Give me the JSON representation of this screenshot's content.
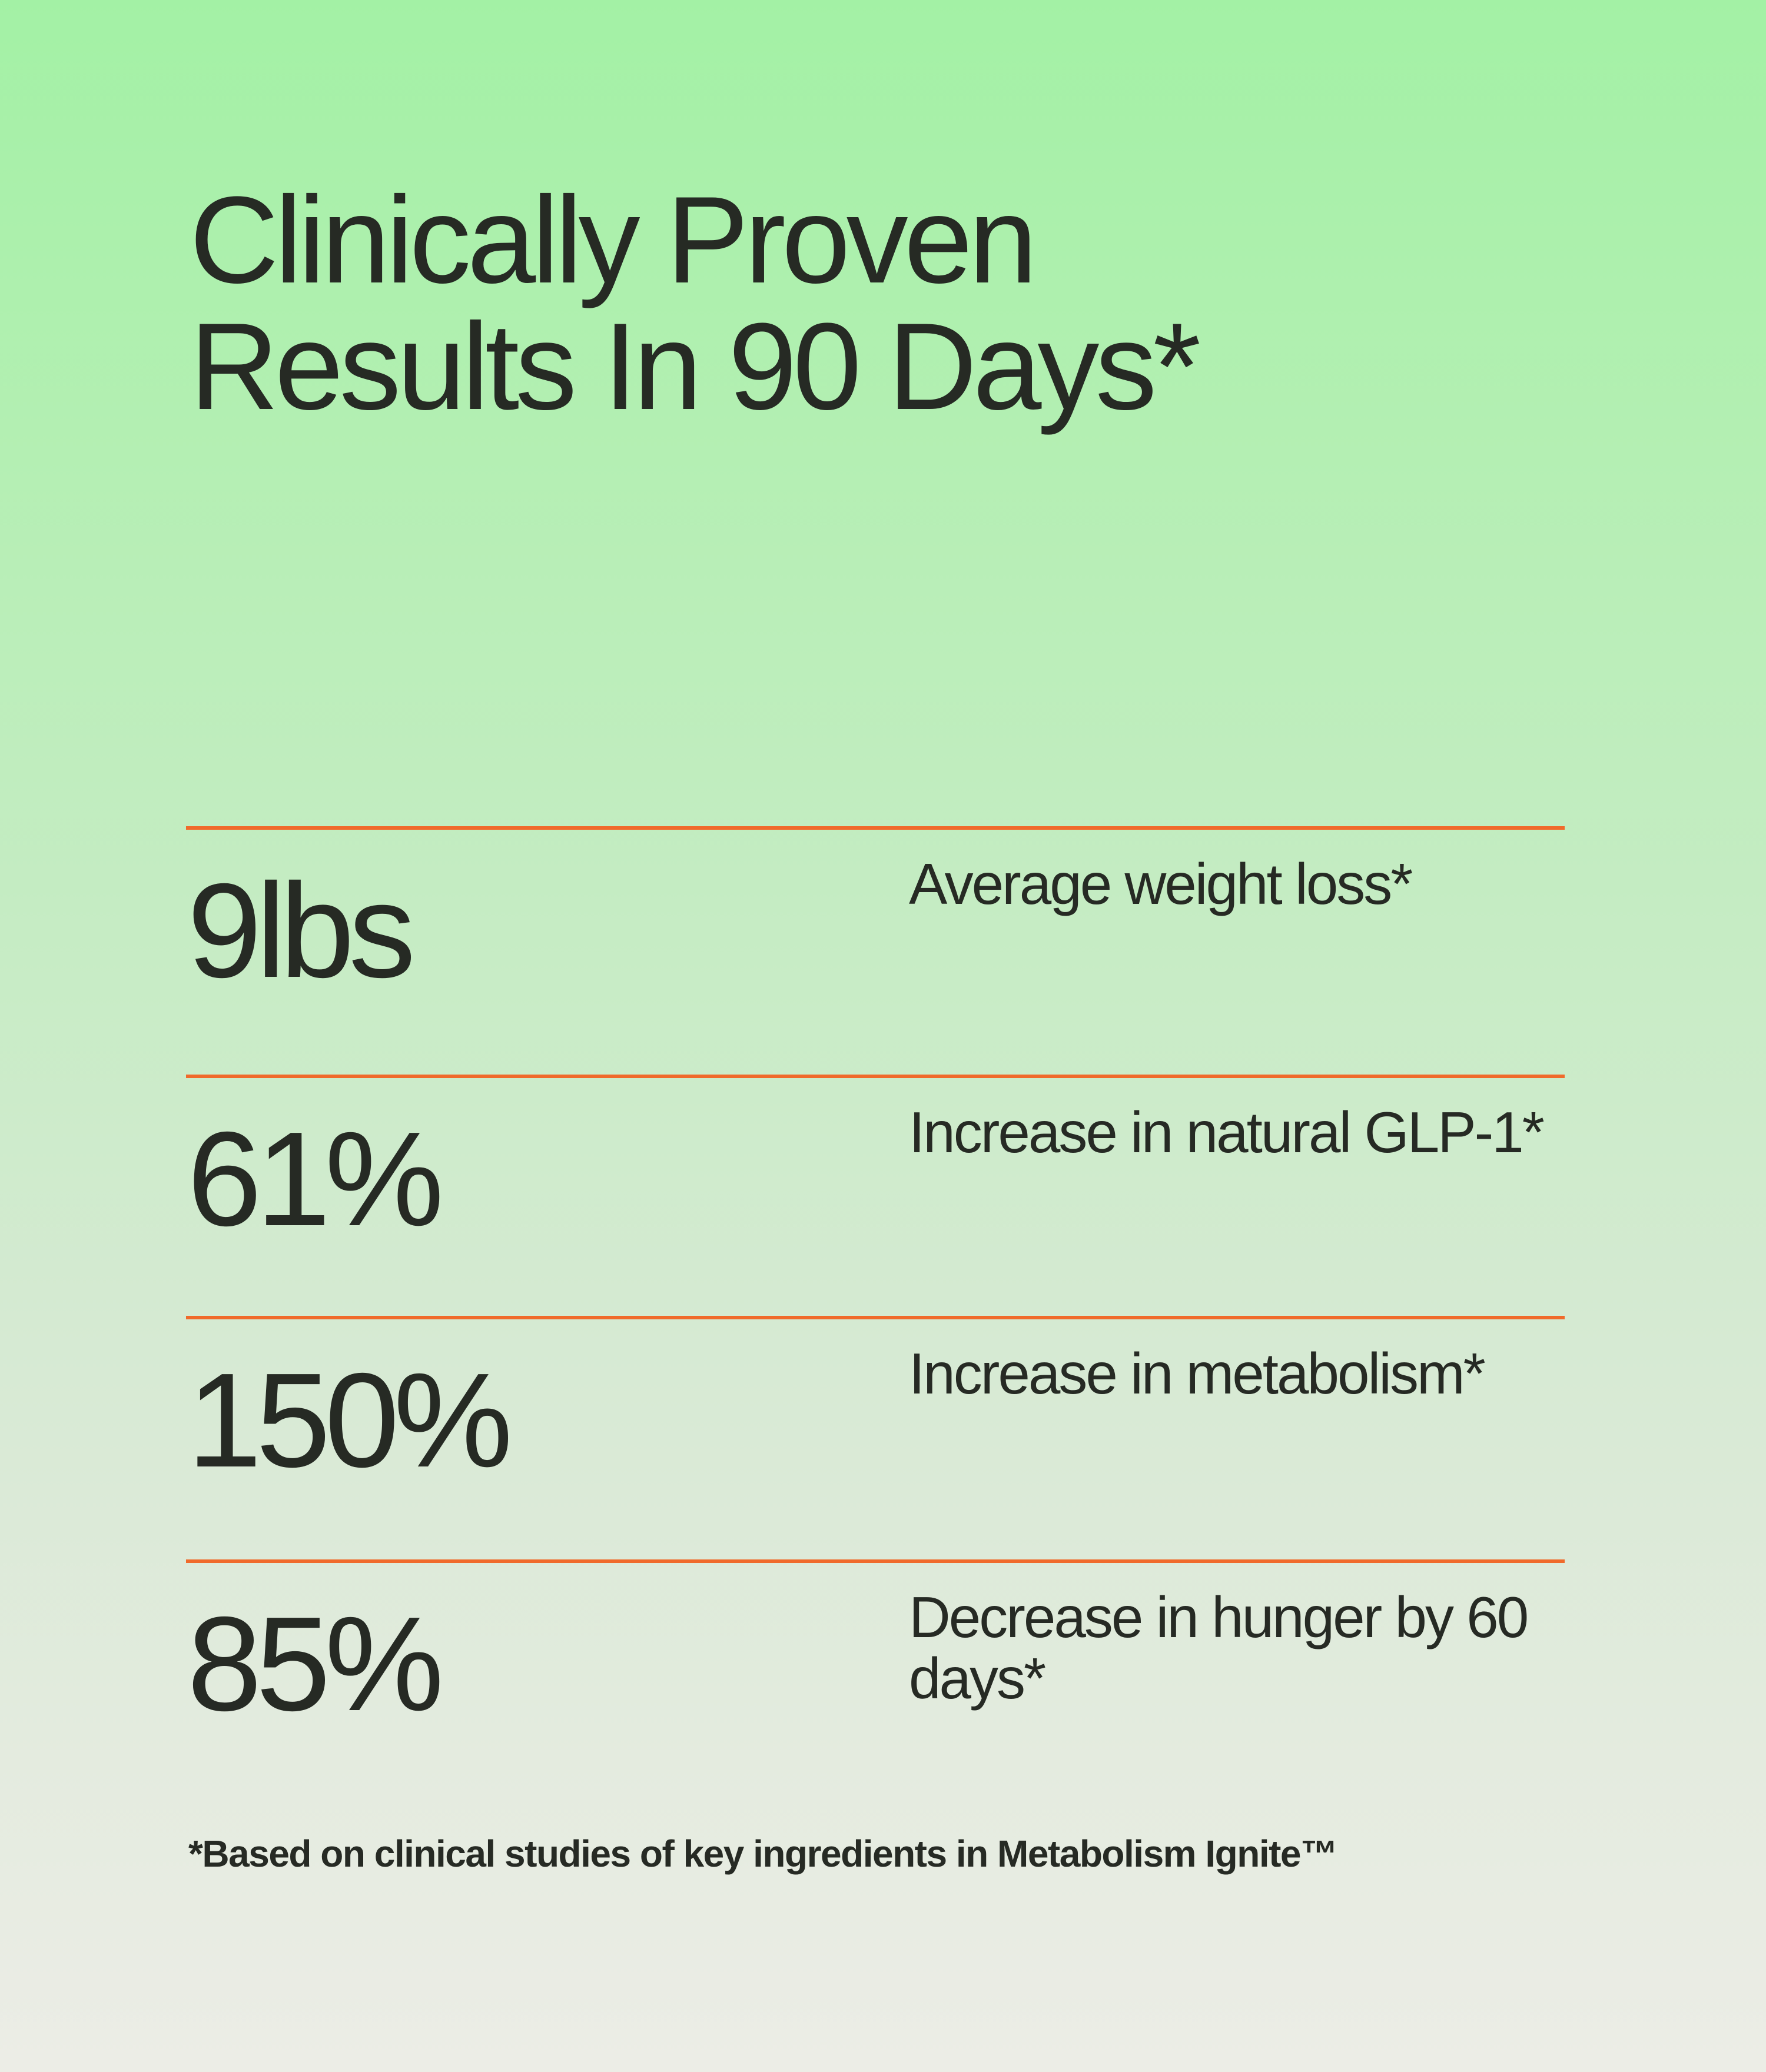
{
  "headline": {
    "line1": "Clinically Proven",
    "line2": "Results In 90 Days*"
  },
  "stats": [
    {
      "value": "9lbs",
      "label": "Average weight loss*"
    },
    {
      "value": "61%",
      "label": "Increase in natural GLP-1*"
    },
    {
      "value": "150%",
      "label": "Increase in metabolism*"
    },
    {
      "value": "85%",
      "label": "Decrease in hunger by 60 days*"
    }
  ],
  "footnote": "*Based on clinical studies of key ingredients in Metabolism Ignite™",
  "colors": {
    "accent_divider": "#f06a2b",
    "text": "#262a24",
    "background_top": "#a3f1a5",
    "background_bottom": "#ecede6"
  }
}
